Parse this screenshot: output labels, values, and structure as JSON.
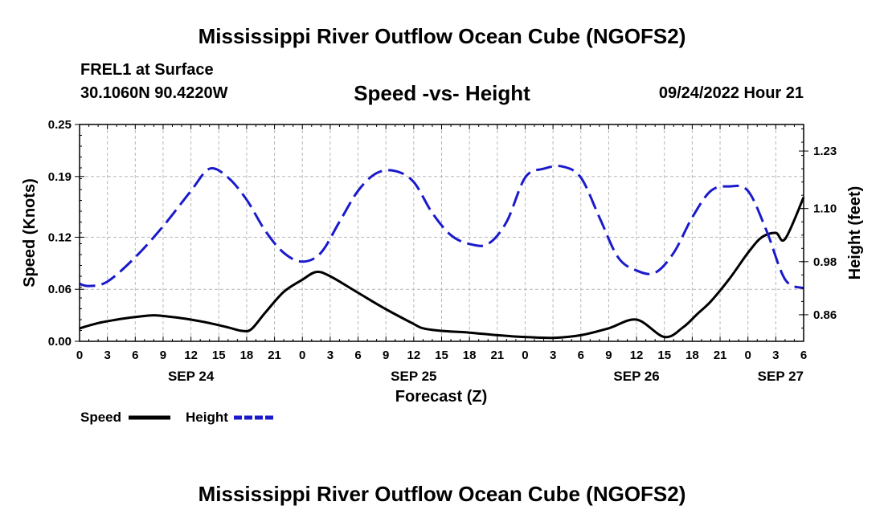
{
  "header": {
    "title": "Mississippi River Outflow Ocean Cube (NGOFS2)",
    "station": "FREL1 at Surface",
    "coords": "30.1060N  90.4220W",
    "subtitle": "Speed -vs- Height",
    "valid_time": "09/24/2022 Hour 21"
  },
  "footer": {
    "title": "Mississippi River Outflow Ocean Cube (NGOFS2)"
  },
  "legend": {
    "items": [
      {
        "label": "Speed",
        "color": "#000000",
        "style": "solid"
      },
      {
        "label": "Height",
        "color": "#1a1acc",
        "style": "dashed"
      }
    ]
  },
  "chart_data": {
    "type": "line",
    "title": "Speed -vs- Height",
    "xlabel": "Forecast (Z)",
    "ylabel": "Speed (Knots)",
    "y2label": "Height (feet)",
    "x_unit": "hours since SEP 24 00Z",
    "xlim": [
      0,
      78
    ],
    "ylim": [
      0,
      0.25
    ],
    "y2lim": [
      0.8,
      1.29
    ],
    "x_tick_hours": [
      0,
      3,
      6,
      9,
      12,
      15,
      18,
      21,
      24,
      27,
      30,
      33,
      36,
      39,
      42,
      45,
      48,
      51,
      54,
      57,
      60,
      63,
      66,
      69,
      72,
      75,
      78
    ],
    "x_tick_labels": [
      "0",
      "3",
      "6",
      "9",
      "12",
      "15",
      "18",
      "21",
      "0",
      "3",
      "6",
      "9",
      "12",
      "15",
      "18",
      "21",
      "0",
      "3",
      "6",
      "9",
      "12",
      "15",
      "18",
      "21",
      "0",
      "3",
      "6"
    ],
    "date_labels": [
      {
        "hour": 12,
        "label": "SEP 24"
      },
      {
        "hour": 36,
        "label": "SEP 25"
      },
      {
        "hour": 60,
        "label": "SEP 26"
      },
      {
        "hour": 78,
        "label": "SEP 27"
      }
    ],
    "y_ticks": [
      0.0,
      0.06,
      0.12,
      0.19,
      0.25
    ],
    "y_tick_labels": [
      "0.00",
      "0.06",
      "0.12",
      "0.19",
      "0.25"
    ],
    "y2_ticks": [
      0.86,
      0.98,
      1.1,
      1.23
    ],
    "y2_tick_labels": [
      "0.86",
      "0.98",
      "1.10",
      "1.23"
    ],
    "grid": true,
    "series": [
      {
        "name": "Speed",
        "axis": "left",
        "color": "#000000",
        "x": [
          0,
          2,
          4,
          6,
          8,
          10,
          12,
          14,
          16,
          17.5,
          18.5,
          20,
          22,
          24,
          25.5,
          27,
          30,
          33,
          36,
          37,
          39,
          42,
          45,
          48,
          51,
          54,
          57,
          60,
          63,
          65,
          66.5,
          68,
          70,
          72,
          73.5,
          75,
          76,
          78
        ],
        "y": [
          0.015,
          0.021,
          0.025,
          0.028,
          0.03,
          0.028,
          0.025,
          0.021,
          0.016,
          0.012,
          0.014,
          0.033,
          0.057,
          0.071,
          0.08,
          0.075,
          0.056,
          0.037,
          0.02,
          0.015,
          0.012,
          0.01,
          0.007,
          0.005,
          0.004,
          0.007,
          0.015,
          0.025,
          0.005,
          0.016,
          0.031,
          0.046,
          0.072,
          0.102,
          0.12,
          0.125,
          0.118,
          0.166
        ]
      },
      {
        "name": "Height",
        "axis": "right",
        "color": "#1a1acc",
        "x": [
          0,
          1,
          3,
          6,
          9,
          12,
          14,
          16,
          18,
          20,
          22,
          24,
          26,
          28,
          30,
          32,
          34,
          36,
          38,
          40,
          42,
          44,
          46,
          48,
          50,
          52,
          54,
          56,
          58,
          60,
          62,
          64,
          66,
          68,
          70,
          72,
          74,
          76,
          78
        ],
        "y": [
          0.93,
          0.925,
          0.935,
          0.99,
          1.06,
          1.14,
          1.19,
          1.17,
          1.12,
          1.05,
          1.0,
          0.98,
          1.0,
          1.07,
          1.14,
          1.18,
          1.185,
          1.16,
          1.09,
          1.04,
          1.02,
          1.02,
          1.07,
          1.17,
          1.19,
          1.195,
          1.17,
          1.08,
          0.99,
          0.96,
          0.955,
          1.0,
          1.08,
          1.14,
          1.15,
          1.14,
          1.05,
          0.94,
          0.92
        ]
      }
    ]
  }
}
